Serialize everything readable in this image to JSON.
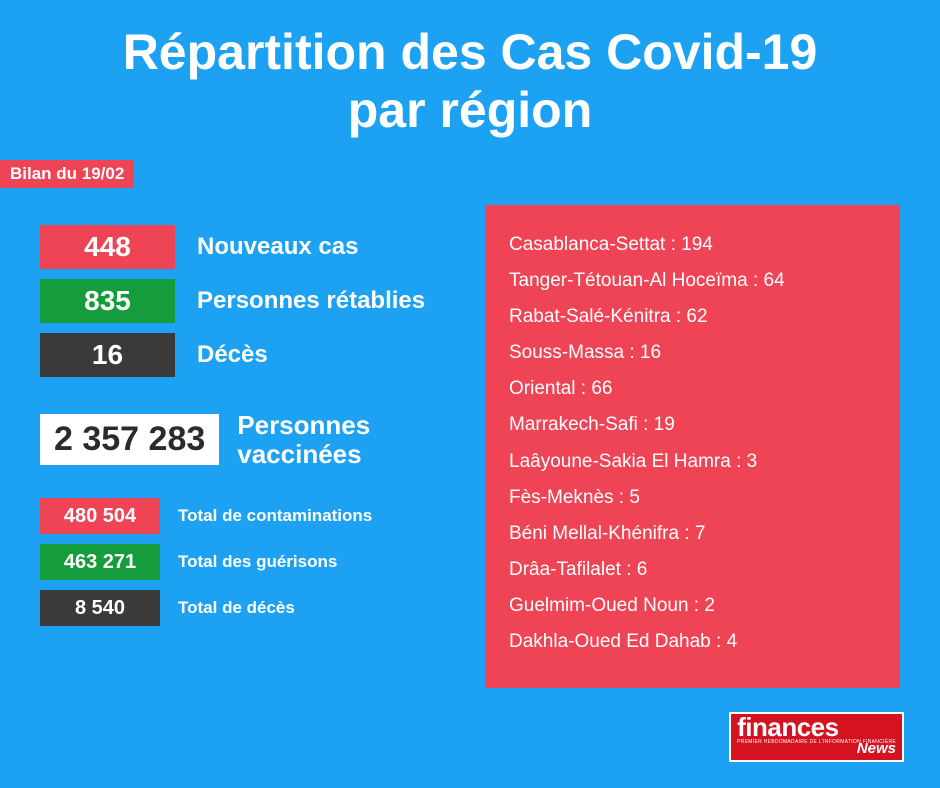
{
  "title_line1": "Répartition des Cas Covid-19",
  "title_line2": "par région",
  "bilan_label": "Bilan du 19/02",
  "colors": {
    "bg": "#1da1f2",
    "red": "#ef4456",
    "green": "#159c3c",
    "dark": "#3a3a3a",
    "white": "#ffffff",
    "logo_red": "#d41220"
  },
  "daily": [
    {
      "value": "448",
      "label": "Nouveaux cas",
      "color": "#ef4456"
    },
    {
      "value": "835",
      "label": "Personnes rétablies",
      "color": "#159c3c"
    },
    {
      "value": "16",
      "label": "Décès",
      "color": "#3a3a3a"
    }
  ],
  "vaccinated": {
    "value": "2 357 283",
    "label_l1": "Personnes",
    "label_l2": "vaccinées"
  },
  "totals": [
    {
      "value": "480 504",
      "label": "Total de contaminations",
      "color": "#ef4456"
    },
    {
      "value": "463 271",
      "label": "Total des guérisons",
      "color": "#159c3c"
    },
    {
      "value": "8 540",
      "label": "Total de décès",
      "color": "#3a3a3a"
    }
  ],
  "regions": [
    "Casablanca-Settat : 194",
    "Tanger-Tétouan-Al Hoceïma : 64",
    "Rabat-Salé-Kénitra : 62",
    "Souss-Massa : 16",
    "Oriental : 66",
    "Marrakech-Safi : 19",
    "Laâyoune-Sakia El Hamra : 3",
    "Fès-Meknès : 5",
    "Béni Mellal-Khénifra : 7",
    "Drâa-Tafilalet : 6",
    "Guelmim-Oued Noun : 2",
    "Dakhla-Oued Ed Dahab : 4"
  ],
  "logo": {
    "top": "finances",
    "sub": "PREMIER HEBDOMADAIRE DE L'INFORMATION FINANCIÈRE",
    "bottom": "News"
  }
}
